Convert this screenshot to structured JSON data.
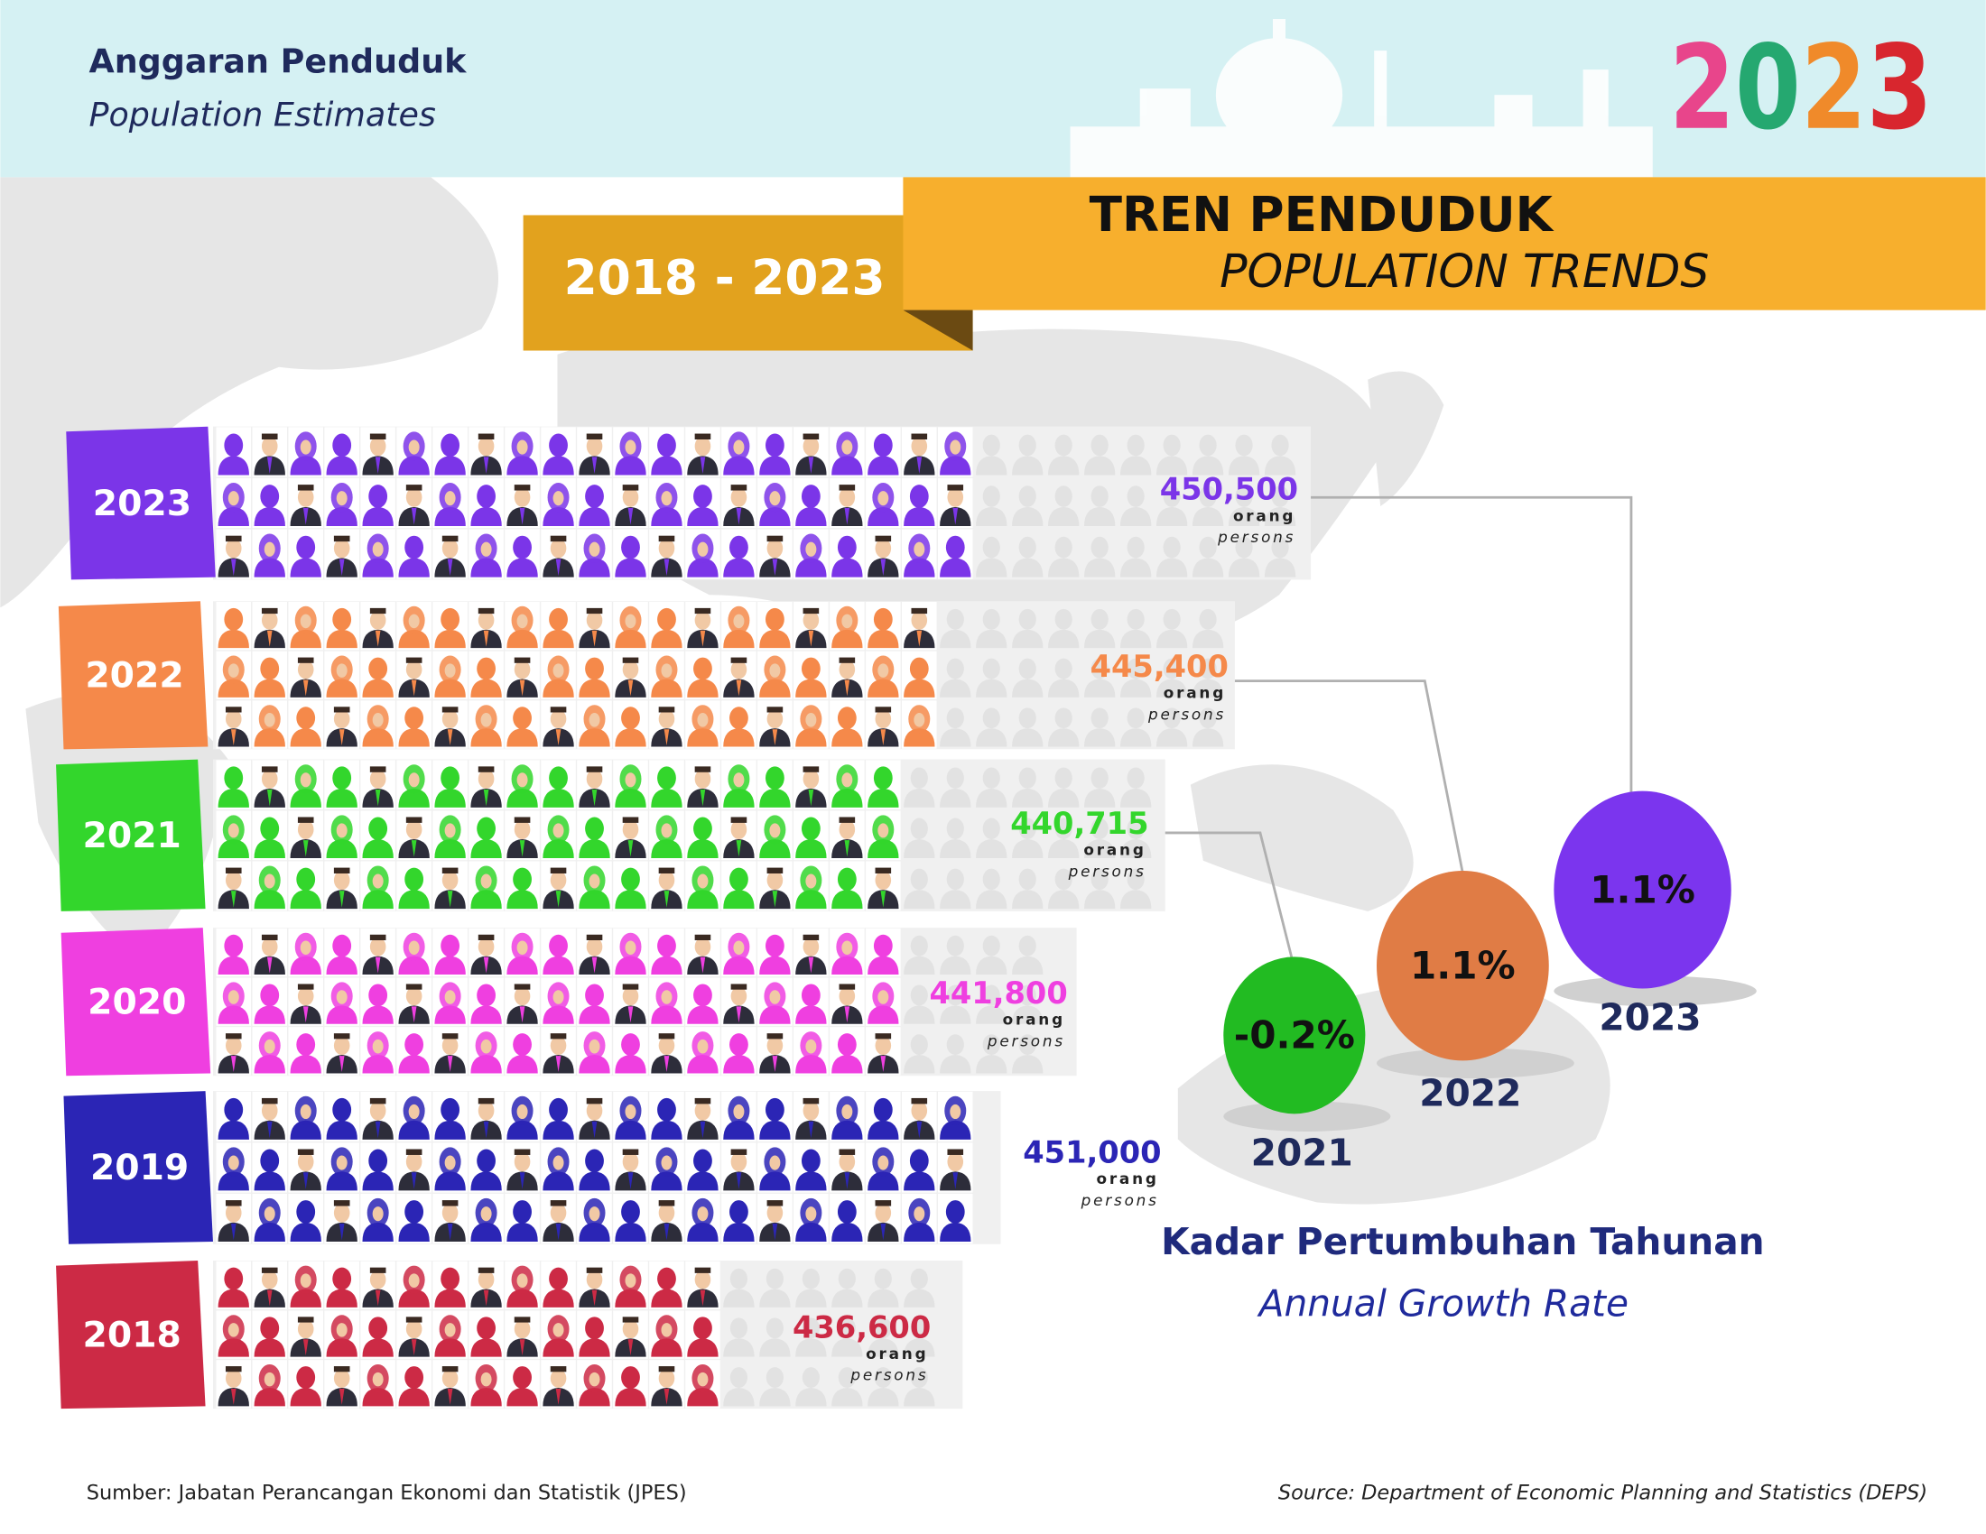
{
  "header": {
    "title_ms": "Anggaran Penduduk",
    "title_en": "Population Estimates",
    "year": "2023"
  },
  "banner": {
    "period": "2018 - 2023",
    "title_ms": "TREN PENDUDUK",
    "title_en": "POPULATION TRENDS"
  },
  "population": {
    "unit_ms": "orang",
    "unit_en": "persons",
    "rows": [
      {
        "year": "2023",
        "value": "450,500",
        "color": "#7b35e8"
      },
      {
        "year": "2022",
        "value": "445,400",
        "color": "#f5894a"
      },
      {
        "year": "2021",
        "value": "440,715",
        "color": "#33d62c"
      },
      {
        "year": "2020",
        "value": "441,800",
        "color": "#ef3fe0"
      },
      {
        "year": "2019",
        "value": "451,000",
        "color": "#2b25b5"
      },
      {
        "year": "2018",
        "value": "436,600",
        "color": "#cc2a45"
      }
    ]
  },
  "growth": {
    "title_ms": "Kadar Pertumbuhan Tahunan",
    "title_en": "Annual Growth Rate",
    "items": [
      {
        "year": "2021",
        "rate": "-0.2%",
        "color": "#22bb22"
      },
      {
        "year": "2022",
        "rate": "1.1%",
        "color": "#e07c45"
      },
      {
        "year": "2023",
        "rate": "1.1%",
        "color": "#7b35ee"
      }
    ]
  },
  "footer": {
    "source_ms": "Sumber: Jabatan Perancangan Ekonomi dan Statistik (JPES)",
    "source_en": "Source: Department of Economic Planning and Statistics (DEPS)"
  }
}
